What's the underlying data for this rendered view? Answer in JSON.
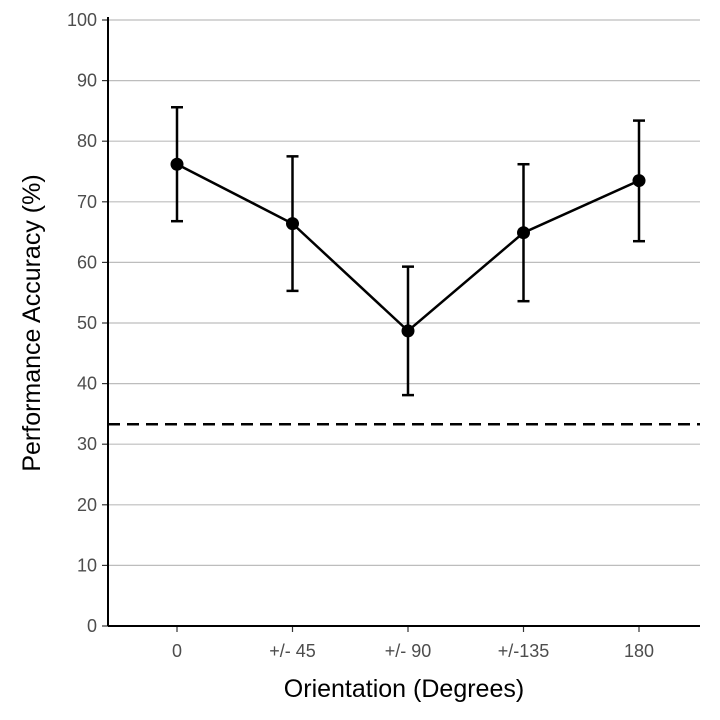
{
  "chart_data": {
    "type": "line",
    "title": "",
    "xlabel": "Orientation (Degrees)",
    "ylabel": "Performance Accuracy (%)",
    "categories": [
      "0",
      "+/- 45",
      "+/- 90",
      "+/-135",
      "180"
    ],
    "ylim": [
      0,
      100
    ],
    "yticks": [
      0,
      10,
      20,
      30,
      40,
      50,
      60,
      70,
      80,
      90,
      100
    ],
    "grid": "horizontal",
    "legend": "none",
    "series": [
      {
        "values": [
          76.2,
          66.4,
          48.7,
          64.9,
          73.5
        ],
        "error_low": [
          66.8,
          55.3,
          38.1,
          53.6,
          63.5
        ],
        "error_high": [
          85.6,
          77.5,
          59.3,
          76.2,
          83.4
        ],
        "color": "#000000"
      }
    ],
    "reference_line": {
      "y": 33.3,
      "style": "dashed",
      "color": "#000000"
    }
  }
}
